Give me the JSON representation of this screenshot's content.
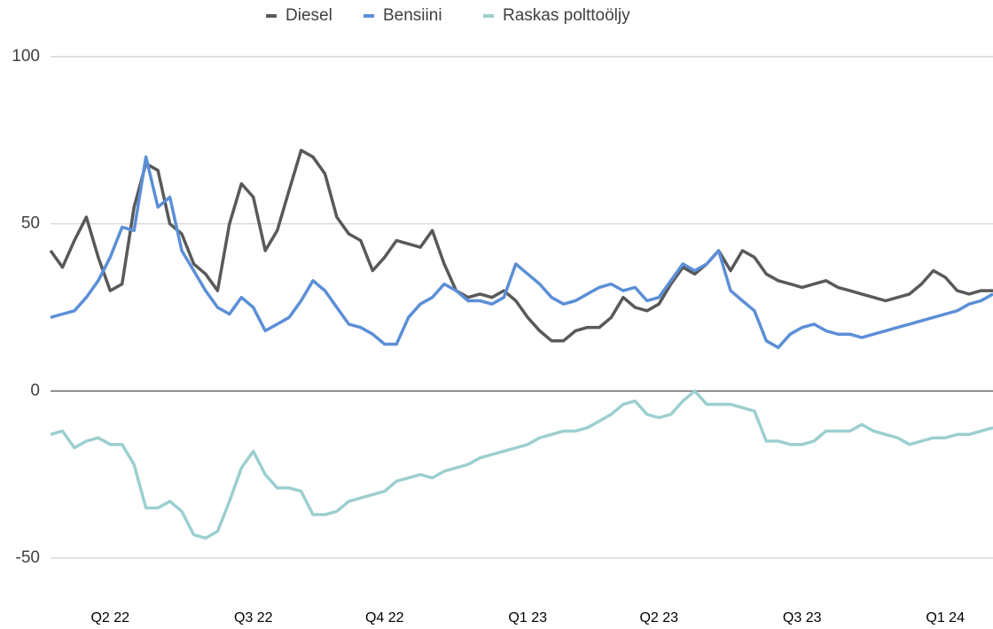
{
  "chart_data": {
    "type": "line",
    "categories": [
      null,
      null,
      null,
      null,
      null,
      "Q2 22",
      null,
      null,
      null,
      null,
      null,
      null,
      null,
      null,
      null,
      null,
      null,
      "Q3 22",
      null,
      null,
      null,
      null,
      null,
      null,
      null,
      null,
      null,
      null,
      "Q4 22",
      null,
      null,
      null,
      null,
      null,
      null,
      null,
      null,
      null,
      null,
      null,
      "Q1 23",
      null,
      null,
      null,
      null,
      null,
      null,
      null,
      null,
      null,
      null,
      "Q2 23",
      null,
      null,
      null,
      null,
      null,
      null,
      null,
      null,
      null,
      null,
      null,
      "Q3 23",
      null,
      null,
      null,
      null,
      null,
      null,
      null,
      null,
      null,
      null,
      null,
      "Q1 24",
      null,
      null,
      null,
      null
    ],
    "series": [
      {
        "name": "Diesel",
        "color": "#595959",
        "values": [
          42,
          37,
          45,
          52,
          40,
          30,
          32,
          55,
          68,
          66,
          50,
          47,
          38,
          35,
          30,
          50,
          62,
          58,
          42,
          48,
          60,
          72,
          70,
          65,
          52,
          47,
          45,
          36,
          40,
          45,
          44,
          43,
          48,
          38,
          30,
          28,
          29,
          28,
          30,
          27,
          22,
          18,
          15,
          15,
          18,
          19,
          19,
          22,
          28,
          25,
          24,
          26,
          32,
          37,
          35,
          38,
          42,
          36,
          42,
          40,
          35,
          33,
          32,
          31,
          32,
          33,
          31,
          30,
          29,
          28,
          27,
          28,
          29,
          32,
          36,
          34,
          30,
          29,
          30,
          30
        ]
      },
      {
        "name": "Bensiini",
        "color": "#5b8fd6",
        "values": [
          22,
          23,
          24,
          28,
          33,
          40,
          49,
          48,
          70,
          55,
          58,
          42,
          36,
          30,
          25,
          23,
          28,
          25,
          18,
          20,
          22,
          27,
          33,
          30,
          25,
          20,
          19,
          17,
          14,
          14,
          22,
          26,
          28,
          32,
          30,
          27,
          27,
          26,
          28,
          38,
          35,
          32,
          28,
          26,
          27,
          29,
          31,
          32,
          30,
          31,
          27,
          28,
          33,
          38,
          36,
          38,
          42,
          30,
          27,
          24,
          15,
          13,
          17,
          19,
          20,
          18,
          17,
          17,
          16,
          17,
          18,
          19,
          20,
          21,
          22,
          23,
          24,
          26,
          27,
          29
        ]
      },
      {
        "name": "Raskas polttoöljy",
        "color": "#9ccfcf",
        "values": [
          -13,
          -12,
          -17,
          -15,
          -14,
          -16,
          -16,
          -22,
          -35,
          -35,
          -33,
          -36,
          -43,
          -44,
          -42,
          -33,
          -23,
          -18,
          -25,
          -29,
          -29,
          -30,
          -37,
          -37,
          -36,
          -33,
          -32,
          -31,
          -30,
          -27,
          -26,
          -25,
          -26,
          -24,
          -23,
          -22,
          -20,
          -19,
          -18,
          -17,
          -16,
          -14,
          -13,
          -12,
          -12,
          -11,
          -9,
          -7,
          -4,
          -3,
          -7,
          -8,
          -7,
          -3,
          0,
          -4,
          -4,
          -4,
          -5,
          -6,
          -15,
          -15,
          -16,
          -16,
          -15,
          -12,
          -12,
          -12,
          -10,
          -12,
          -13,
          -14,
          -16,
          -15,
          -14,
          -14,
          -13,
          -13,
          -12,
          -11
        ]
      }
    ],
    "ylim": [
      -50,
      100
    ],
    "yticks": [
      -50,
      0,
      50,
      100
    ],
    "grid": true,
    "legend": "top"
  }
}
